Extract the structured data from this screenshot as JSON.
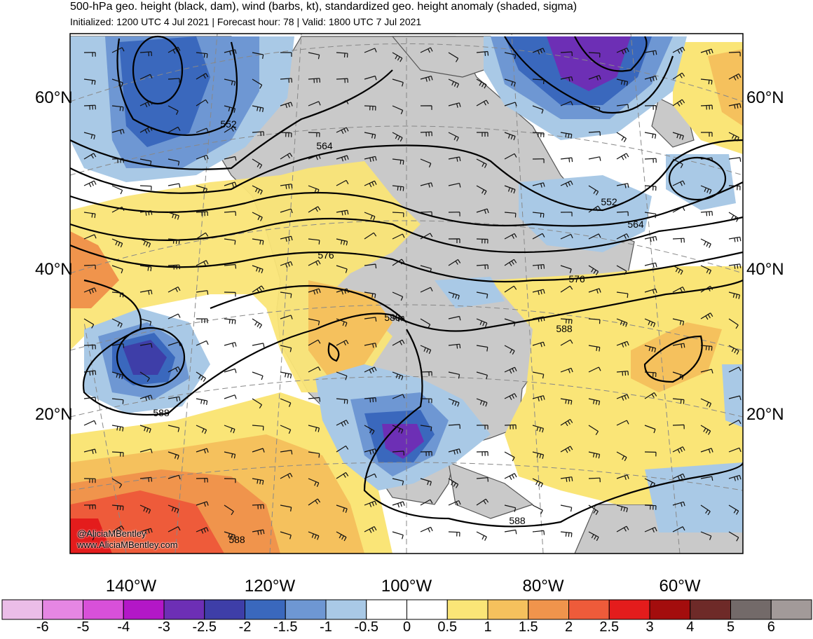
{
  "header": {
    "title": "500-hPa geo. height (black, dam), wind (barbs, kt), standardized geo. height anomaly (shaded, sigma)",
    "subtitle": "Initialized: 1200 UTC 4 Jul 2021 | Forecast hour: 78 | Valid: 1800 UTC 7 Jul 2021"
  },
  "map": {
    "lat_labels": [
      "60°N",
      "40°N",
      "20°N"
    ],
    "lon_labels": [
      "140°W",
      "120°W",
      "100°W",
      "80°W",
      "60°W"
    ],
    "contour_labels": [
      "552",
      "564",
      "552",
      "564",
      "576",
      "576",
      "588",
      "588",
      "588",
      "588",
      "588"
    ],
    "credits": [
      "@AliciaMBentley",
      "www.AliciaMBentley.com"
    ]
  },
  "colorbar": {
    "colors": [
      "#ebbde8",
      "#e586e3",
      "#d850d9",
      "#b317c7",
      "#6d2fb5",
      "#3e3ea8",
      "#3a68bd",
      "#6e97d3",
      "#a9c9e6",
      "#ffffff",
      "#ffffff",
      "#fae577",
      "#f5c15d",
      "#f0944c",
      "#ee5b3a",
      "#e41c1c",
      "#a30d0d",
      "#6e2a28",
      "#736a69",
      "#a29a99"
    ],
    "ticks": [
      "-6",
      "-5",
      "-4",
      "-3",
      "-2.5",
      "-2",
      "-1.5",
      "-1",
      "-0.5",
      "0",
      "0.5",
      "1",
      "1.5",
      "2",
      "2.5",
      "3",
      "4",
      "5",
      "6"
    ]
  },
  "colors": {
    "land": "#c9c9c9",
    "contour": "#000000"
  }
}
